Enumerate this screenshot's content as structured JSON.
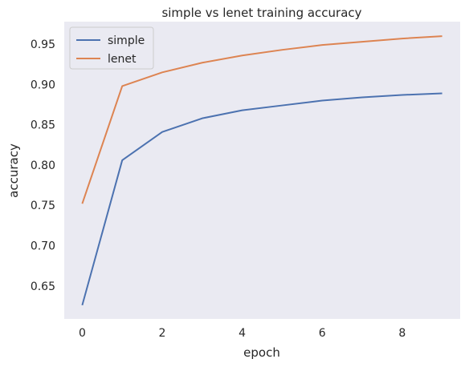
{
  "chart_data": {
    "type": "line",
    "title": "simple vs lenet training accuracy",
    "xlabel": "epoch",
    "ylabel": "accuracy",
    "x": [
      0,
      1,
      2,
      3,
      4,
      5,
      6,
      7,
      8,
      9
    ],
    "xlim": [
      -0.45,
      9.45
    ],
    "ylim": [
      0.609,
      0.978
    ],
    "xticks": [
      0,
      2,
      4,
      6,
      8
    ],
    "yticks": [
      0.65,
      0.7,
      0.75,
      0.8,
      0.85,
      0.9,
      0.95
    ],
    "ytick_labels": [
      "0.65",
      "0.70",
      "0.75",
      "0.80",
      "0.85",
      "0.90",
      "0.95"
    ],
    "grid": false,
    "legend_position": "top-left",
    "background_color": "#eaeaf2",
    "series": [
      {
        "name": "simple",
        "color": "#4c72b0",
        "values": [
          0.626,
          0.806,
          0.841,
          0.858,
          0.868,
          0.874,
          0.88,
          0.884,
          0.887,
          0.889
        ]
      },
      {
        "name": "lenet",
        "color": "#dd8452",
        "values": [
          0.752,
          0.898,
          0.915,
          0.927,
          0.936,
          0.943,
          0.949,
          0.953,
          0.957,
          0.96
        ]
      }
    ]
  }
}
